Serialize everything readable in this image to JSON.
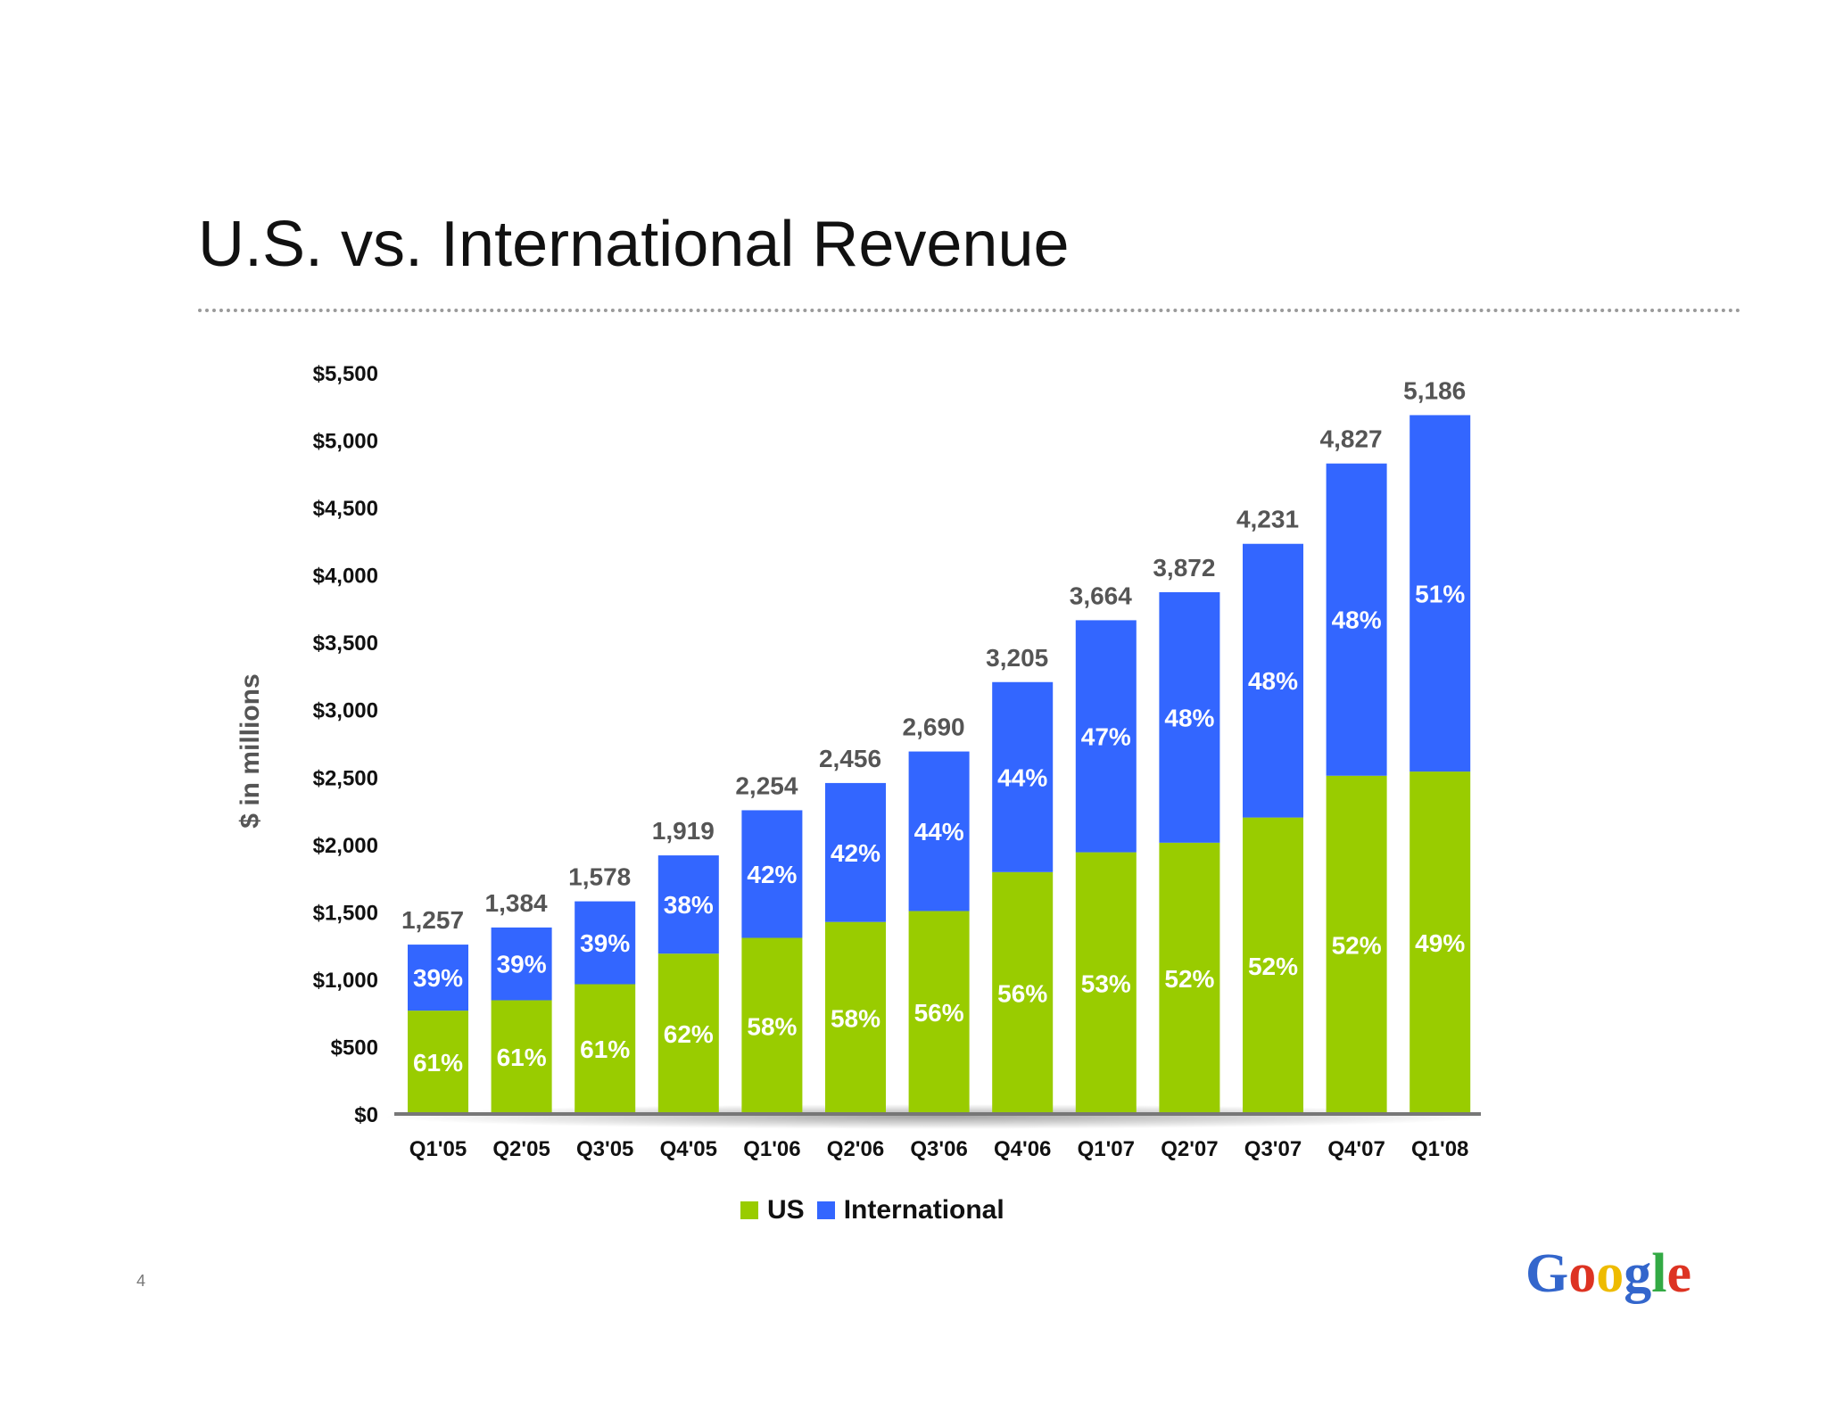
{
  "slide": {
    "title": "U.S. vs. International Revenue",
    "page_number": "4",
    "logo_text": "Google"
  },
  "colors": {
    "us": "#99cc00",
    "international": "#3366ff",
    "total_label": "#555555",
    "axis_text": "#111111"
  },
  "chart_data": {
    "type": "bar",
    "stacked": true,
    "title": "U.S. vs. International Revenue",
    "xlabel": "",
    "ylabel": "$ in millions",
    "ylim": [
      0,
      5500
    ],
    "yticks": [
      0,
      500,
      1000,
      1500,
      2000,
      2500,
      3000,
      3500,
      4000,
      4500,
      5000,
      5500
    ],
    "ytick_labels": [
      "$0",
      "$500",
      "$1,000",
      "$1,500",
      "$2,000",
      "$2,500",
      "$3,000",
      "$3,500",
      "$4,000",
      "$4,500",
      "$5,000",
      "$5,500"
    ],
    "categories": [
      "Q1'05",
      "Q2'05",
      "Q3'05",
      "Q4'05",
      "Q1'06",
      "Q2'06",
      "Q3'06",
      "Q4'06",
      "Q1'07",
      "Q2'07",
      "Q3'07",
      "Q4'07",
      "Q1'08"
    ],
    "totals": [
      1257,
      1384,
      1578,
      1919,
      2254,
      2456,
      2690,
      3205,
      3664,
      3872,
      4231,
      4827,
      5186
    ],
    "total_labels": [
      "1,257",
      "1,384",
      "1,578",
      "1,919",
      "2,254",
      "2,456",
      "2,690",
      "3,205",
      "3,664",
      "3,872",
      "4,231",
      "4,827",
      "5,186"
    ],
    "series": [
      {
        "name": "US",
        "values": [
          767,
          844,
          963,
          1190,
          1307,
          1425,
          1506,
          1795,
          1942,
          2013,
          2200,
          2510,
          2541
        ],
        "labels": [
          "61%",
          "61%",
          "61%",
          "62%",
          "58%",
          "58%",
          "56%",
          "56%",
          "53%",
          "52%",
          "52%",
          "52%",
          "49%"
        ]
      },
      {
        "name": "International",
        "values": [
          490,
          540,
          615,
          729,
          947,
          1031,
          1184,
          1410,
          1722,
          1859,
          2031,
          2317,
          2645
        ],
        "labels": [
          "39%",
          "39%",
          "39%",
          "38%",
          "42%",
          "42%",
          "44%",
          "44%",
          "47%",
          "48%",
          "48%",
          "48%",
          "51%"
        ]
      }
    ],
    "grid": false,
    "legend_position": "bottom-center"
  }
}
